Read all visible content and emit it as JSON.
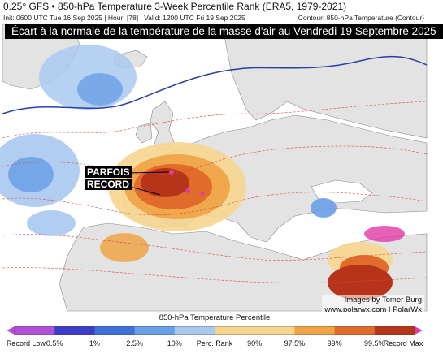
{
  "header": {
    "title": "0.25° GFS • 850-hPa Temperature 3-Week Percentile Rank (ERA5, 1979-2021)",
    "subtitle": "Init: 0600 UTC Tue 16 Sep 2025 | Hour: [78] | Valid: 1200 UTC Fri 19 Sep 2025",
    "contour_note": "Contour: 850-hPa Temperature (Contour)"
  },
  "banner": "Écart à la normale de la température de la masse d'air au Vendredi 19 Septembre 2025",
  "callout": {
    "line1": "PARFOIS",
    "line2": "RECORD"
  },
  "credit": {
    "line1": "Images by Tomer Burg",
    "line2": "www.polarwx.com | PolarWx"
  },
  "legend": {
    "title": "850-hPa Temperature Percentile",
    "ticks": [
      "Record Low",
      "0.5%",
      "1%",
      "2.5%",
      "10%",
      "Perc. Rank",
      "90%",
      "97.5%",
      "99%",
      "99.5%",
      "Record Max"
    ],
    "colors": [
      "#b04fd8",
      "#3b3cc8",
      "#3f6fd8",
      "#6a9fe6",
      "#a9c9f0",
      "#ffffff",
      "#f6d58e",
      "#f0a448",
      "#e06b2a",
      "#b6341a",
      "#e23aa7"
    ]
  },
  "map_colors": {
    "land": "#e3e3e3",
    "sea": "#ffffff",
    "warm_light": "#f6d58e",
    "warm_mid": "#f0a448",
    "warm_strong": "#e06b2a",
    "warm_record": "#b6341a",
    "cool_light": "#a9c9f0",
    "cool_mid": "#6a9fe6",
    "record_max": "#e23aa7"
  }
}
